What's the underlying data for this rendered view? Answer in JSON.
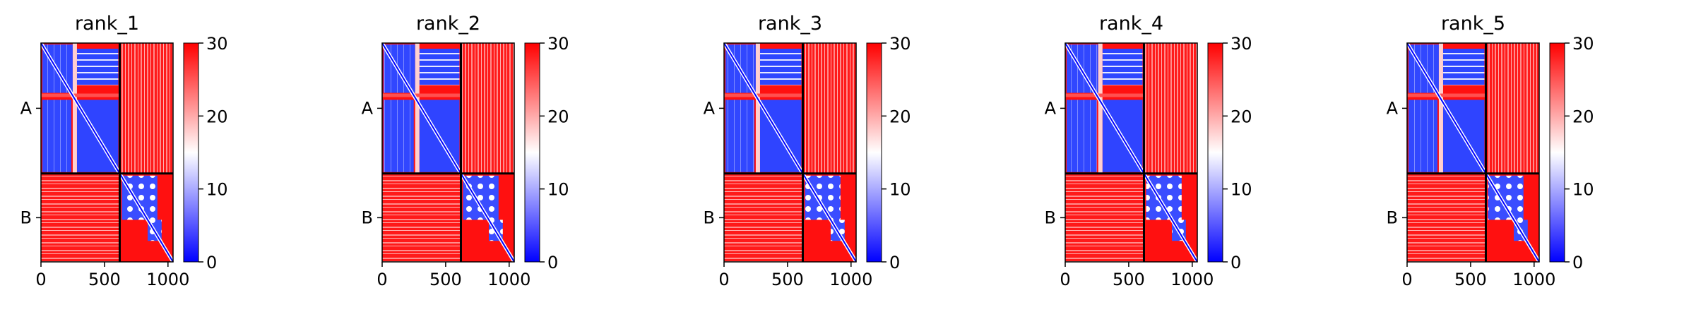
{
  "chart_data": [
    {
      "type": "heatmap",
      "title": "rank_1",
      "x_ticks": [
        0,
        500,
        1000
      ],
      "xlim": [
        0,
        1040
      ],
      "y_ticks": [
        "A",
        "B"
      ],
      "chain_boundary": 620,
      "colorbar": {
        "range": [
          0,
          30
        ],
        "ticks": [
          0,
          10,
          20,
          30
        ],
        "colors": [
          "#0000ff",
          "#ffffff",
          "#ff0000"
        ]
      }
    },
    {
      "type": "heatmap",
      "title": "rank_2",
      "x_ticks": [
        0,
        500,
        1000
      ],
      "xlim": [
        0,
        1040
      ],
      "y_ticks": [
        "A",
        "B"
      ],
      "chain_boundary": 620,
      "colorbar": {
        "range": [
          0,
          30
        ],
        "ticks": [
          0,
          10,
          20,
          30
        ],
        "colors": [
          "#0000ff",
          "#ffffff",
          "#ff0000"
        ]
      }
    },
    {
      "type": "heatmap",
      "title": "rank_3",
      "x_ticks": [
        0,
        500,
        1000
      ],
      "xlim": [
        0,
        1040
      ],
      "y_ticks": [
        "A",
        "B"
      ],
      "chain_boundary": 620,
      "colorbar": {
        "range": [
          0,
          30
        ],
        "ticks": [
          0,
          10,
          20,
          30
        ],
        "colors": [
          "#0000ff",
          "#ffffff",
          "#ff0000"
        ]
      }
    },
    {
      "type": "heatmap",
      "title": "rank_4",
      "x_ticks": [
        0,
        500,
        1000
      ],
      "xlim": [
        0,
        1040
      ],
      "y_ticks": [
        "A",
        "B"
      ],
      "chain_boundary": 620,
      "colorbar": {
        "range": [
          0,
          30
        ],
        "ticks": [
          0,
          10,
          20,
          30
        ],
        "colors": [
          "#0000ff",
          "#ffffff",
          "#ff0000"
        ]
      }
    },
    {
      "type": "heatmap",
      "title": "rank_5",
      "x_ticks": [
        0,
        500,
        1000
      ],
      "xlim": [
        0,
        1040
      ],
      "y_ticks": [
        "A",
        "B"
      ],
      "chain_boundary": 620,
      "colorbar": {
        "range": [
          0,
          30
        ],
        "ticks": [
          0,
          10,
          20,
          30
        ],
        "colors": [
          "#0000ff",
          "#ffffff",
          "#ff0000"
        ]
      }
    }
  ]
}
